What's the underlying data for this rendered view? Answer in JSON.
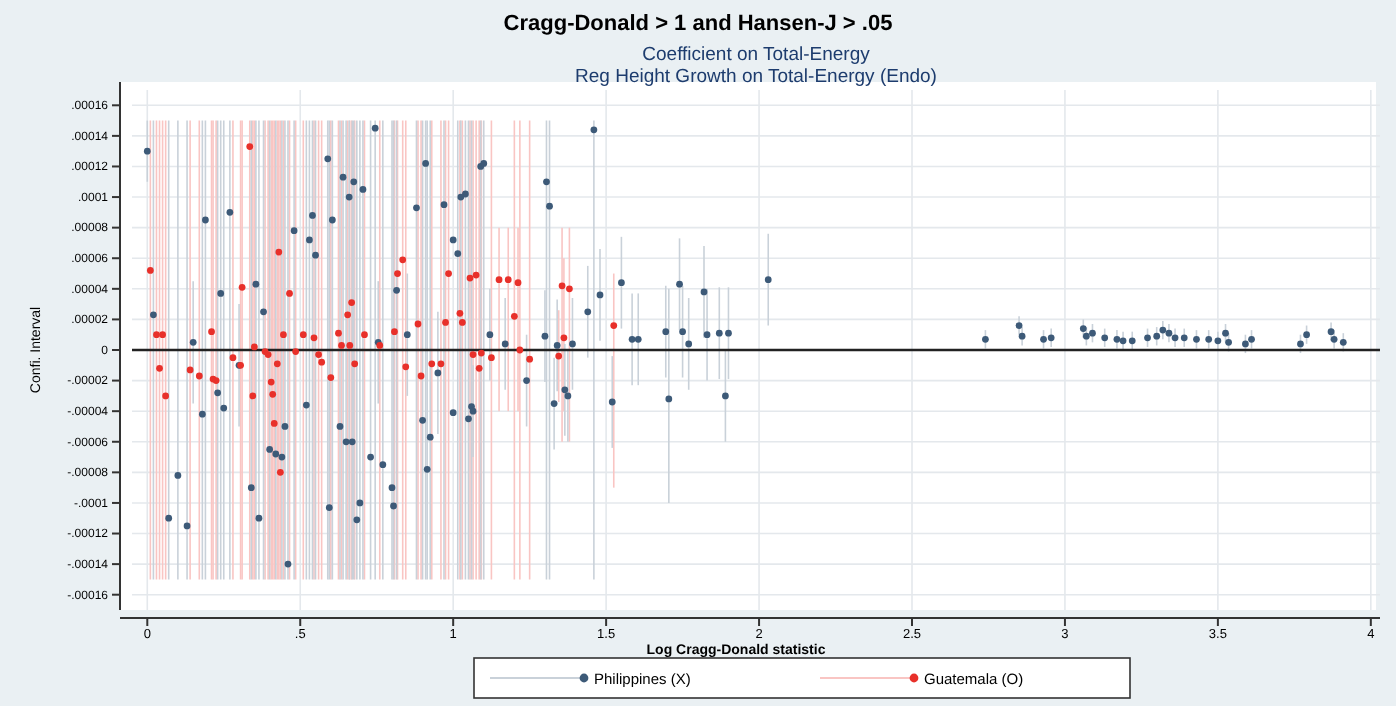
{
  "chart_data": {
    "type": "scatter",
    "title": "Cragg-Donald > 1 and Hansen-J > .05",
    "subtitle": "Coefficient on Total-Energy\nReg Height Growth on Total-Energy (Endo)",
    "xlabel": "Log Cragg-Donald statistic",
    "ylabel": "Confi. Interval",
    "xlim": [
      -0.05,
      4.03
    ],
    "ylim": [
      -0.00017,
      0.00017
    ],
    "xticks": [
      0,
      {
        "value": 0.5,
        "label": ".5"
      },
      1,
      {
        "value": 1.5,
        "label": "1.5"
      },
      2,
      {
        "value": 2.5,
        "label": "2.5"
      },
      3,
      {
        "value": 3.5,
        "label": "3.5"
      },
      4
    ],
    "yticks": [
      {
        "value": -0.00016,
        "label": "-.00016"
      },
      {
        "value": -0.00014,
        "label": "-.00014"
      },
      {
        "value": -0.00012,
        "label": "-.00012"
      },
      {
        "value": -0.0001,
        "label": "-.0001"
      },
      {
        "value": -8e-05,
        "label": "-.00008"
      },
      {
        "value": -6e-05,
        "label": "-.00006"
      },
      {
        "value": -4e-05,
        "label": "-.00004"
      },
      {
        "value": -2e-05,
        "label": "-.00002"
      },
      0,
      {
        "value": 2e-05,
        "label": ".00002"
      },
      {
        "value": 4e-05,
        "label": ".00004"
      },
      {
        "value": 6e-05,
        "label": ".00006"
      },
      {
        "value": 8e-05,
        "label": ".00008"
      },
      {
        "value": 0.0001,
        "label": ".0001"
      },
      {
        "value": 0.00012,
        "label": ".00012"
      },
      {
        "value": 0.00014,
        "label": ".00014"
      },
      {
        "value": 0.00016,
        "label": ".00016"
      }
    ],
    "grid": true,
    "legend": "bottom",
    "marker": "circle",
    "ref_lines": [
      {
        "axis": "y",
        "value": 0,
        "color": "#222222"
      }
    ],
    "series": [
      {
        "name": "Philippines (X)",
        "color": "#3d5a78",
        "x": [
          0.0,
          0.02,
          0.07,
          0.1,
          0.13,
          0.18,
          0.19,
          0.23,
          0.24,
          0.27,
          0.25,
          0.34,
          0.355,
          0.365,
          0.38,
          0.4,
          0.42,
          0.44,
          0.45,
          0.46,
          0.48,
          0.52,
          0.53,
          0.54,
          0.55,
          0.59,
          0.595,
          0.605,
          0.63,
          0.64,
          0.65,
          0.66,
          0.67,
          0.675,
          0.685,
          0.695,
          0.705,
          0.73,
          0.745,
          0.77,
          0.8,
          0.805,
          0.815,
          0.88,
          0.9,
          0.91,
          0.915,
          0.925,
          0.97,
          1.0,
          1.015,
          1.04,
          1.0,
          1.05,
          1.06,
          1.09,
          1.1,
          0.85,
          0.755,
          0.95,
          0.3,
          0.15,
          1.46,
          1.305,
          1.315,
          1.025,
          1.55,
          1.74,
          1.82,
          2.03,
          1.48,
          1.44,
          1.695,
          1.75,
          1.83,
          1.87,
          1.9,
          1.77,
          1.705,
          1.89,
          1.52,
          1.33,
          1.365,
          1.375,
          1.24,
          1.065,
          1.17,
          1.3,
          1.39,
          1.34,
          1.12,
          1.585,
          1.605,
          2.74,
          2.85,
          2.86,
          2.93,
          2.955,
          3.06,
          3.07,
          3.09,
          3.13,
          3.17,
          3.19,
          3.22,
          3.27,
          3.3,
          3.32,
          3.34,
          3.36,
          3.39,
          3.43,
          3.47,
          3.5,
          3.525,
          3.535,
          3.59,
          3.61,
          3.77,
          3.79,
          3.87,
          3.88,
          3.91
        ],
        "values": [
          0.00013,
          2.3e-05,
          -0.00011,
          -8.2e-05,
          -0.000115,
          -4.2e-05,
          8.5e-05,
          -2.8e-05,
          3.7e-05,
          9e-05,
          -3.8e-05,
          -9e-05,
          4.3e-05,
          -0.00011,
          2.5e-05,
          -6.5e-05,
          -6.8e-05,
          -7e-05,
          -5e-05,
          -0.00014,
          7.8e-05,
          -3.6e-05,
          7.2e-05,
          8.8e-05,
          6.2e-05,
          0.000125,
          -0.000103,
          8.5e-05,
          -5e-05,
          0.000113,
          -6e-05,
          0.0001,
          -6e-05,
          0.00011,
          -0.000111,
          -0.0001,
          0.000105,
          -7e-05,
          0.000145,
          -7.5e-05,
          -9e-05,
          -0.000102,
          3.9e-05,
          9.3e-05,
          -4.6e-05,
          0.000122,
          -7.8e-05,
          -5.7e-05,
          9.5e-05,
          7.2e-05,
          6.3e-05,
          0.000102,
          -4.1e-05,
          -4.5e-05,
          -3.7e-05,
          0.00012,
          0.000122,
          1e-05,
          5e-06,
          -1.5e-05,
          -1e-05,
          5e-06,
          0.000144,
          0.00011,
          9.4e-05,
          0.0001,
          4.4e-05,
          4.3e-05,
          3.8e-05,
          4.6e-05,
          3.6e-05,
          2.5e-05,
          1.2e-05,
          1.2e-05,
          1e-05,
          1.1e-05,
          1.1e-05,
          4e-06,
          -3.2e-05,
          -3e-05,
          -3.4e-05,
          -3.5e-05,
          -2.6e-05,
          -3e-05,
          -2e-05,
          -4e-05,
          4e-06,
          9e-06,
          4e-06,
          3e-06,
          1e-05,
          7e-06,
          7e-06,
          7e-06,
          1.6e-05,
          9e-06,
          7e-06,
          8e-06,
          1.4e-05,
          9e-06,
          1.1e-05,
          8e-06,
          7e-06,
          6e-06,
          6e-06,
          8e-06,
          9e-06,
          1.3e-05,
          1.1e-05,
          8e-06,
          8e-06,
          7e-06,
          7e-06,
          6e-06,
          1.1e-05,
          5e-06,
          4e-06,
          7e-06,
          4e-06,
          1e-05,
          1.2e-05,
          7e-06,
          5e-06
        ],
        "errors": [
          2e-05,
          [
            -0.00015,
            0.00015
          ],
          [
            -0.00015,
            0.00015
          ],
          [
            -0.00015,
            0.00015
          ],
          [
            -0.00015,
            0.00015
          ],
          [
            -0.00015,
            0.00015
          ],
          [
            -0.00015,
            0.00015
          ],
          [
            -0.00015,
            0.00015
          ],
          [
            -0.00015,
            0.00015
          ],
          [
            -0.00015,
            0.00015
          ],
          [
            -0.00015,
            0.00015
          ],
          [
            -0.00015,
            0.00015
          ],
          [
            -0.00015,
            0.00015
          ],
          [
            -0.00015,
            0.00015
          ],
          [
            -0.00015,
            0.00015
          ],
          [
            -0.00015,
            0.00015
          ],
          [
            -0.00015,
            0.00015
          ],
          [
            -0.00015,
            0.00015
          ],
          [
            -0.00015,
            0.00015
          ],
          [
            -0.00015,
            0.00015
          ],
          [
            -0.00015,
            0.00015
          ],
          [
            -0.00015,
            0.00015
          ],
          [
            -0.00015,
            0.00015
          ],
          [
            -0.00015,
            0.00015
          ],
          [
            -0.00015,
            0.00015
          ],
          [
            -0.00015,
            0.00015
          ],
          [
            -0.00015,
            0.00015
          ],
          [
            -0.00015,
            0.00015
          ],
          [
            -0.00015,
            0.00015
          ],
          [
            -0.00015,
            0.00015
          ],
          [
            -0.00015,
            0.00015
          ],
          [
            -0.00015,
            0.00015
          ],
          [
            -0.00015,
            0.00015
          ],
          [
            -0.00015,
            0.00015
          ],
          [
            -0.00015,
            0.00015
          ],
          [
            -0.00015,
            0.00015
          ],
          [
            -0.00015,
            0.00015
          ],
          [
            -0.00015,
            0.00015
          ],
          [
            -0.00015,
            0.00015
          ],
          [
            -0.00015,
            0.00015
          ],
          [
            -0.00015,
            0.00015
          ],
          [
            -0.00015,
            0.00015
          ],
          [
            -0.00015,
            0.00015
          ],
          [
            -0.00015,
            0.00015
          ],
          [
            -0.00015,
            0.00015
          ],
          [
            -0.00015,
            0.00015
          ],
          [
            -0.00015,
            0.00015
          ],
          [
            -0.00015,
            0.00015
          ],
          [
            -0.00015,
            0.00015
          ],
          null,
          [
            -0.00015,
            0.00015
          ],
          [
            -0.00015,
            0.00015
          ],
          null,
          [
            -0.00015,
            0.00015
          ],
          [
            -0.00015,
            0.00015
          ],
          [
            -0.00015,
            0.00015
          ],
          [
            -0.00015,
            0.00015
          ],
          4e-05,
          4e-05,
          4e-05,
          4e-05,
          4e-05,
          [
            -0.00015,
            0.00015
          ],
          [
            -0.00015,
            0.00015
          ],
          [
            -0.00015,
            0.00015
          ],
          [
            -0.00015,
            0.00015
          ],
          3e-05,
          3e-05,
          3e-05,
          3e-05,
          3e-05,
          3e-05,
          3e-05,
          3e-05,
          3e-05,
          3e-05,
          3e-05,
          3e-05,
          [
            -0.0001,
            4e-05
          ],
          3e-05,
          3e-05,
          3e-05,
          3e-05,
          3e-05,
          3e-05,
          3e-05,
          3e-05,
          3e-05,
          3e-05,
          3e-05,
          3e-05,
          3e-05,
          3e-05,
          6e-06,
          6e-06,
          6e-06,
          6e-06,
          6e-06,
          6e-06,
          6e-06,
          6e-06,
          6e-06,
          6e-06,
          6e-06,
          6e-06,
          6e-06,
          6e-06,
          6e-06,
          6e-06,
          6e-06,
          6e-06,
          6e-06,
          6e-06,
          6e-06,
          6e-06,
          6e-06,
          6e-06,
          6e-06,
          6e-06,
          6e-06,
          6e-06,
          6e-06,
          6e-06
        ]
      },
      {
        "name": "Guatemala (O)",
        "color": "#e8302a",
        "x": [
          0.01,
          0.03,
          0.05,
          0.04,
          0.06,
          0.14,
          0.17,
          0.21,
          0.215,
          0.225,
          0.28,
          0.305,
          0.31,
          0.335,
          0.345,
          0.35,
          0.385,
          0.395,
          0.405,
          0.41,
          0.425,
          0.43,
          0.415,
          0.435,
          0.445,
          0.465,
          0.485,
          0.51,
          0.545,
          0.56,
          0.57,
          0.6,
          0.625,
          0.635,
          0.655,
          0.668,
          0.678,
          0.662,
          0.71,
          0.76,
          0.808,
          0.818,
          0.835,
          0.845,
          0.885,
          0.895,
          0.93,
          0.96,
          0.975,
          0.985,
          1.022,
          1.055,
          1.065,
          1.092,
          1.075,
          1.15,
          1.18,
          1.212,
          1.2,
          1.218,
          1.085,
          1.125,
          1.25,
          1.356,
          1.38,
          1.362,
          1.345,
          1.525,
          1.03
        ],
        "values": [
          5.2e-05,
          1e-05,
          1e-05,
          -1.2e-05,
          -3e-05,
          -1.3e-05,
          -1.7e-05,
          1.2e-05,
          -1.9e-05,
          -2e-05,
          -5e-06,
          -1e-05,
          4.1e-05,
          0.000133,
          -3e-05,
          2e-06,
          -1e-06,
          -3e-06,
          -2.1e-05,
          -2.9e-05,
          -9e-06,
          6.4e-05,
          -4.8e-05,
          -8e-05,
          1e-05,
          3.7e-05,
          -1e-06,
          1e-05,
          8e-06,
          -3e-06,
          -8e-06,
          -1.8e-05,
          1.1e-05,
          3e-06,
          2.3e-05,
          3.1e-05,
          -9e-06,
          3e-06,
          1e-05,
          3e-06,
          1.2e-05,
          5e-05,
          5.9e-05,
          -1.1e-05,
          1.7e-05,
          -1.7e-05,
          -9e-06,
          -9e-06,
          1.8e-05,
          5e-05,
          2.4e-05,
          4.7e-05,
          -3e-06,
          -2e-06,
          4.9e-05,
          4.6e-05,
          4.6e-05,
          4.4e-05,
          2.2e-05,
          0,
          -1.2e-05,
          -5e-06,
          -6e-06,
          4.2e-05,
          4e-05,
          8e-06,
          -4e-06,
          1.6e-05,
          1.8e-05
        ],
        "errors": [
          [
            -0.00015,
            0.00015
          ],
          [
            -0.00015,
            0.00015
          ],
          [
            -0.00015,
            0.00015
          ],
          [
            -0.00015,
            0.00015
          ],
          [
            -0.00015,
            0.00015
          ],
          [
            -0.00015,
            0.00015
          ],
          [
            -0.00015,
            0.00015
          ],
          [
            -0.00015,
            0.00015
          ],
          [
            -0.00015,
            0.00015
          ],
          [
            -0.00015,
            0.00015
          ],
          [
            -0.00015,
            0.00015
          ],
          [
            -0.00015,
            0.00015
          ],
          [
            -0.00015,
            0.00015
          ],
          [
            -0.00015,
            0.00015
          ],
          [
            -0.00015,
            0.00015
          ],
          [
            -0.00015,
            0.00015
          ],
          [
            -0.00015,
            0.00015
          ],
          [
            -0.00015,
            0.00015
          ],
          [
            -0.00015,
            0.00015
          ],
          [
            -0.00015,
            0.00015
          ],
          [
            -0.00015,
            0.00015
          ],
          [
            -0.00015,
            0.00015
          ],
          [
            -0.00015,
            0.00015
          ],
          [
            -0.00015,
            0.00015
          ],
          [
            -0.00015,
            0.00015
          ],
          [
            -0.00015,
            0.00015
          ],
          [
            -0.00015,
            0.00015
          ],
          [
            -0.00015,
            0.00015
          ],
          [
            -0.00015,
            0.00015
          ],
          [
            -0.00015,
            0.00015
          ],
          [
            -0.00015,
            0.00015
          ],
          [
            -0.00015,
            0.00015
          ],
          [
            -0.00015,
            0.00015
          ],
          [
            -0.00015,
            0.00015
          ],
          [
            -0.00015,
            0.00015
          ],
          [
            -0.00015,
            0.00015
          ],
          [
            -0.00015,
            0.00015
          ],
          [
            -0.00015,
            0.00015
          ],
          [
            -0.00015,
            0.00015
          ],
          [
            -0.00015,
            0.00015
          ],
          [
            -0.00015,
            0.00015
          ],
          [
            -0.00015,
            0.00015
          ],
          [
            -0.00015,
            0.00015
          ],
          [
            -0.00015,
            0.00015
          ],
          [
            -0.00015,
            0.00015
          ],
          [
            -0.00015,
            0.00015
          ],
          [
            -0.00015,
            0.00015
          ],
          [
            -0.00015,
            0.00015
          ],
          [
            -0.00015,
            0.00015
          ],
          [
            -0.00015,
            0.00015
          ],
          [
            -0.00015,
            0.00015
          ],
          [
            -0.00015,
            0.00015
          ],
          [
            -0.00015,
            0.00015
          ],
          [
            -0.00015,
            0.00015
          ],
          [
            -0.00015,
            0.00015
          ],
          [
            -4e-05,
            8e-05
          ],
          [
            -4e-05,
            8e-05
          ],
          [
            -4e-05,
            8e-05
          ],
          [
            -0.00015,
            0.00015
          ],
          [
            -0.00015,
            0.00015
          ],
          [
            -0.00015,
            0.00015
          ],
          [
            -0.00015,
            0.00015
          ],
          [
            -0.00015,
            0.00015
          ],
          [
            -6e-05,
            8e-05
          ],
          [
            -6e-05,
            8e-05
          ],
          [
            -4e-05,
            6e-05
          ],
          3e-05,
          [
            -9e-05,
            5e-05
          ],
          [
            -0.00015,
            0.00015
          ]
        ]
      }
    ]
  }
}
